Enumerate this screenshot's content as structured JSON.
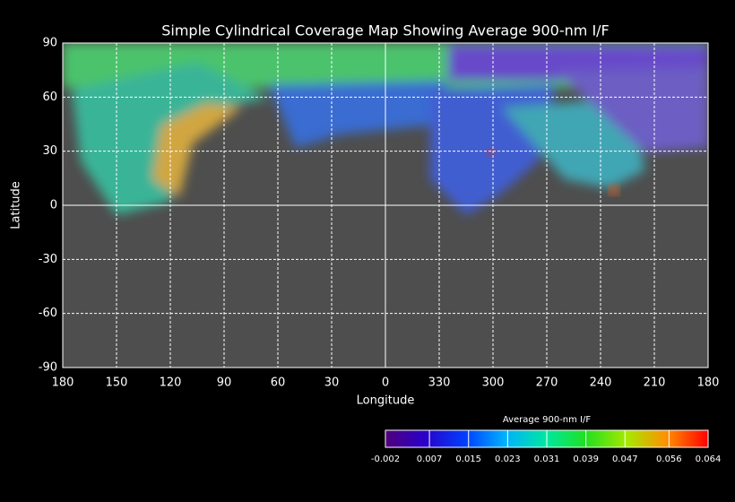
{
  "chart_data": {
    "type": "map",
    "title": "Simple Cylindrical Coverage Map Showing Average 900-nm I/F",
    "x_label": "Longitude",
    "y_label": "Latitude",
    "xlim": [
      180,
      -180
    ],
    "xticks": [
      180,
      150,
      120,
      90,
      60,
      30,
      0,
      {
        "value": -30,
        "label": "330"
      },
      {
        "value": -60,
        "label": "300"
      },
      {
        "value": -90,
        "label": "270"
      },
      {
        "value": -120,
        "label": "240"
      },
      {
        "value": -150,
        "label": "210"
      },
      {
        "value": -180,
        "label": "180"
      }
    ],
    "ylim": [
      -90,
      90
    ],
    "yticks": [
      90,
      60,
      30,
      0,
      -30,
      -60,
      -90
    ],
    "grid": true,
    "colorbar": {
      "title": "Average 900-nm I/F",
      "lim": [
        -0.002,
        0.064
      ],
      "ticks": [
        -0.002,
        0.007,
        0.015,
        0.023,
        0.031,
        0.039,
        0.047,
        0.056,
        0.064
      ]
    }
  }
}
